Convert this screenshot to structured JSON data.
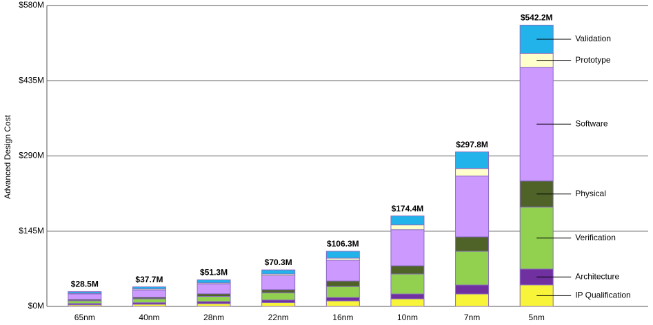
{
  "chart_data": {
    "type": "stacked_bar",
    "y_label": "Advanced Design Cost",
    "categories": [
      "65nm",
      "40nm",
      "28nm",
      "22nm",
      "16nm",
      "10nm",
      "7nm",
      "5nm"
    ],
    "series": [
      {
        "name": "IP Qualification",
        "color": "#f7f43a",
        "values": [
          3,
          4.2,
          5.3,
          7.3,
          10.6,
          14.6,
          23.9,
          41.5
        ]
      },
      {
        "name": "Architecture",
        "color": "#7030a0",
        "values": [
          2.5,
          3,
          4,
          5,
          6.6,
          9.3,
          17.3,
          30.5
        ]
      },
      {
        "name": "Verification",
        "color": "#92d050",
        "values": [
          5.5,
          7.5,
          10,
          14,
          21.2,
          38.5,
          65,
          119.5
        ]
      },
      {
        "name": "Physical",
        "color": "#4f6228",
        "values": [
          2.5,
          3,
          5,
          6,
          10.6,
          15.9,
          27.9,
          50.4
        ]
      },
      {
        "name": "Software",
        "color": "#cc99ff",
        "values": [
          10.5,
          14,
          19,
          27,
          40,
          69.5,
          117.2,
          219
        ]
      },
      {
        "name": "Prototype",
        "color": "#ffffcc",
        "values": [
          1.5,
          2,
          2,
          3,
          4,
          9.3,
          14.6,
          26.9
        ]
      },
      {
        "name": "Validation",
        "color": "#22b3ea",
        "values": [
          3,
          4,
          6,
          8,
          13.3,
          17.3,
          31.9,
          54.4
        ]
      }
    ],
    "totals": {
      "values": [
        28.5,
        37.7,
        51.3,
        70.3,
        106.3,
        174.4,
        297.8,
        542.2
      ],
      "value_labels": [
        "$28.5M",
        "$37.7M",
        "$51.3M",
        "$70.3M",
        "$106.3M",
        "$174.4M",
        "$297.8M",
        "$542.2M"
      ]
    },
    "ylim": [
      0,
      580
    ],
    "yticks": [
      {
        "value": 0,
        "label": "$0M"
      },
      {
        "value": 145,
        "label": "$145M"
      },
      {
        "value": 290,
        "label": "$290M"
      },
      {
        "value": 435,
        "label": "$435M"
      },
      {
        "value": 580,
        "label": "$580M"
      }
    ],
    "grid": true,
    "legend": "right"
  }
}
